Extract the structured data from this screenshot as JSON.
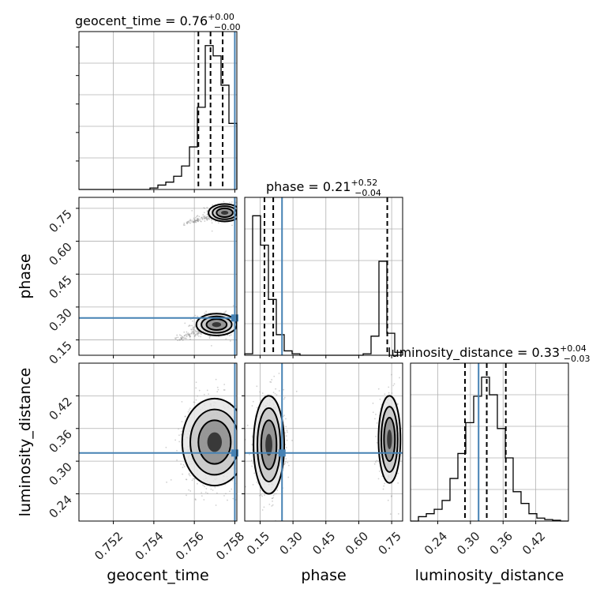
{
  "chart_data": {
    "type": "corner",
    "parameters": [
      "geocent_time",
      "phase",
      "luminosity_distance"
    ],
    "truths": {
      "geocent_time": 0.758,
      "phase": 0.25,
      "luminosity_distance": 0.315
    },
    "quantiles": {
      "geocent_time": [
        0.7562,
        0.7568,
        0.7574
      ],
      "phase": [
        0.17,
        0.21,
        0.73
      ],
      "luminosity_distance": [
        0.29,
        0.33,
        0.365
      ]
    },
    "titles": [
      {
        "param": "geocent_time",
        "text": "geocent_time = 0.76",
        "plus": "+0.00",
        "minus": "−0.00"
      },
      {
        "param": "phase",
        "text": "phase = 0.21",
        "plus": "+0.52",
        "minus": "−0.04"
      },
      {
        "param": "luminosity_distance",
        "text": "luminosity_distance = 0.33",
        "plus": "+0.04",
        "minus": "−0.03"
      }
    ],
    "axes": {
      "geocent_time": {
        "range": [
          0.7503,
          0.7581
        ],
        "ticks": [
          0.752,
          0.754,
          0.756,
          0.758
        ],
        "tick_labels": [
          "0.752",
          "0.754",
          "0.756",
          "0.758"
        ],
        "label": "geocent_time"
      },
      "phase": {
        "range": [
          0.08,
          0.8
        ],
        "ticks": [
          0.15,
          0.3,
          0.45,
          0.6,
          0.75
        ],
        "tick_labels": [
          "0.15",
          "0.30",
          "0.45",
          "0.60",
          "0.75"
        ],
        "label": "phase"
      },
      "luminosity_distance": {
        "range": [
          0.19,
          0.48
        ],
        "ticks": [
          0.24,
          0.3,
          0.36,
          0.42
        ],
        "tick_labels": [
          "0.24",
          "0.30",
          "0.36",
          "0.42"
        ],
        "label": "luminosity_distance"
      }
    },
    "histograms": {
      "geocent_time": {
        "edges": [
          0.7503,
          0.75069,
          0.75108,
          0.75147,
          0.75186,
          0.75225,
          0.75264,
          0.75303,
          0.75342,
          0.75381,
          0.7542,
          0.75459,
          0.75498,
          0.75537,
          0.75576,
          0.75615,
          0.75654,
          0.75693,
          0.75732,
          0.75771,
          0.7581
        ],
        "counts": [
          0,
          0,
          0,
          0,
          0,
          0,
          0,
          0,
          0,
          0.01,
          0.03,
          0.05,
          0.09,
          0.16,
          0.29,
          0.56,
          0.98,
          0.91,
          0.71,
          0.45
        ]
      },
      "phase": {
        "edges": [
          0.08,
          0.116,
          0.152,
          0.188,
          0.224,
          0.26,
          0.296,
          0.332,
          0.368,
          0.404,
          0.44,
          0.476,
          0.512,
          0.548,
          0.584,
          0.62,
          0.656,
          0.692,
          0.728,
          0.764,
          0.8
        ],
        "counts": [
          0.01,
          0.95,
          0.75,
          0.38,
          0.14,
          0.03,
          0.01,
          0,
          0,
          0,
          0,
          0,
          0,
          0,
          0,
          0.01,
          0.13,
          0.64,
          0.15,
          0.02
        ]
      },
      "luminosity_distance": {
        "edges": [
          0.19,
          0.2045,
          0.219,
          0.2335,
          0.248,
          0.2625,
          0.277,
          0.2915,
          0.306,
          0.3205,
          0.335,
          0.3495,
          0.364,
          0.3785,
          0.393,
          0.4075,
          0.422,
          0.4365,
          0.451,
          0.4655,
          0.48
        ],
        "counts": [
          0,
          0.03,
          0.05,
          0.08,
          0.14,
          0.29,
          0.46,
          0.67,
          0.85,
          0.98,
          0.86,
          0.63,
          0.43,
          0.2,
          0.12,
          0.05,
          0.02,
          0.01,
          0.005,
          0
        ]
      }
    },
    "joint": [
      {
        "x": "geocent_time",
        "y": "phase",
        "modes": [
          {
            "cx": 0.7575,
            "cy": 0.73,
            "sx": 0.0004,
            "sy": 0.02,
            "tail": [
              0.7555,
              0.68
            ],
            "n": 420
          },
          {
            "cx": 0.7571,
            "cy": 0.22,
            "sx": 0.0005,
            "sy": 0.025,
            "tail": [
              0.7552,
              0.15
            ],
            "n": 520
          }
        ]
      },
      {
        "x": "geocent_time",
        "y": "luminosity_distance",
        "modes": [
          {
            "cx": 0.757,
            "cy": 0.335,
            "sx": 0.0008,
            "sy": 0.04,
            "n": 900
          }
        ]
      },
      {
        "x": "phase",
        "y": "luminosity_distance",
        "modes": [
          {
            "cx": 0.19,
            "cy": 0.33,
            "sx": 0.035,
            "sy": 0.045,
            "n": 650
          },
          {
            "cx": 0.74,
            "cy": 0.34,
            "sx": 0.025,
            "sy": 0.04,
            "n": 330
          }
        ]
      }
    ],
    "colors": {
      "truth": "#4682b4",
      "line": "#000000",
      "grid": "#b0b0b0",
      "scatter": "#9a9a9a"
    }
  }
}
